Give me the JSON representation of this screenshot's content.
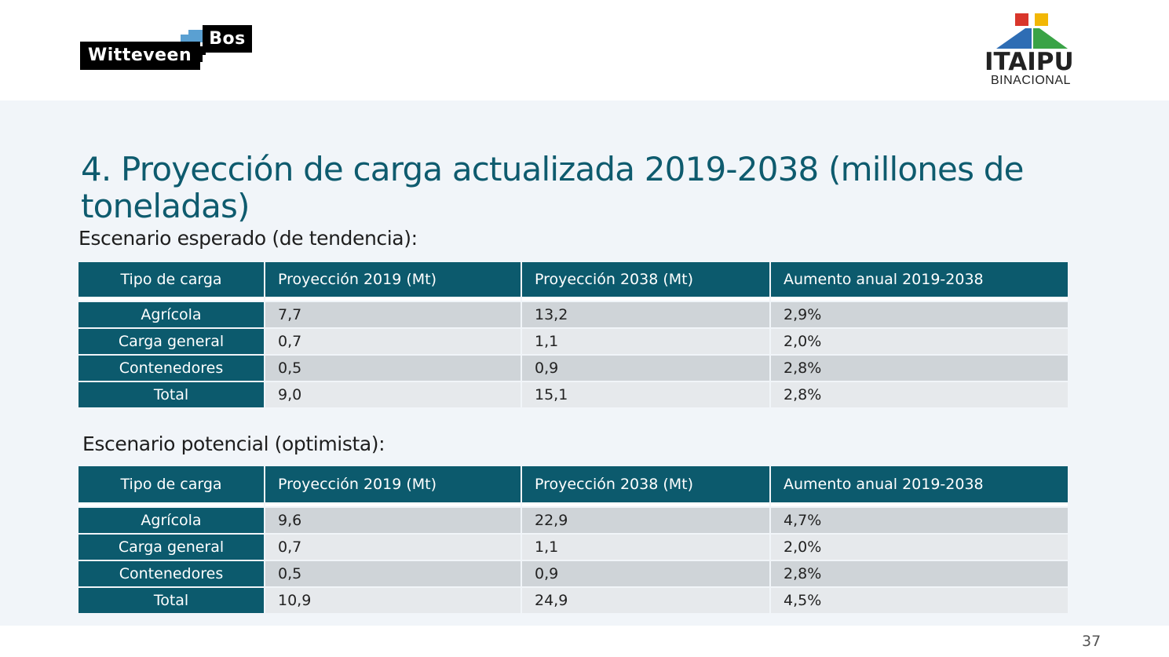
{
  "logos": {
    "left": {
      "part1": "Witteveen",
      "part2": "Bos"
    },
    "right": {
      "name": "ITAIPU",
      "subtitle": "BINACIONAL",
      "colors": [
        "#d9362b",
        "#f2b705",
        "#2e6db4",
        "#3aa346"
      ]
    }
  },
  "title": "4. Proyección de carga actualizada 2019-2038 (millones de toneladas)",
  "scenario1": {
    "label": "Escenario esperado (de tendencia):",
    "headers": [
      "Tipo de carga",
      "Proyección 2019 (Mt)",
      "Proyección 2038 (Mt)",
      "Aumento anual 2019-2038"
    ],
    "rows": [
      [
        "Agrícola",
        "7,7",
        "13,2",
        "2,9%"
      ],
      [
        "Carga general",
        "0,7",
        "1,1",
        "2,0%"
      ],
      [
        "Contenedores",
        "0,5",
        "0,9",
        "2,8%"
      ],
      [
        "Total",
        "9,0",
        "15,1",
        "2,8%"
      ]
    ]
  },
  "scenario2": {
    "label": "Escenario potencial (optimista):",
    "headers": [
      "Tipo de carga",
      "Proyección 2019 (Mt)",
      "Proyección 2038 (Mt)",
      "Aumento anual 2019-2038"
    ],
    "rows": [
      [
        "Agrícola",
        "9,6",
        "22,9",
        "4,7%"
      ],
      [
        "Carga general",
        "0,7",
        "1,1",
        "2,0%"
      ],
      [
        "Contenedores",
        "0,5",
        "0,9",
        "2,8%"
      ],
      [
        "Total",
        "10,9",
        "24,9",
        "4,5%"
      ]
    ]
  },
  "page_number": "37",
  "colors": {
    "header_fill": "#0c5a6d",
    "title_color": "#0e5b6e",
    "row_odd": "#cfd4d8",
    "row_even": "#e6e9ec"
  }
}
